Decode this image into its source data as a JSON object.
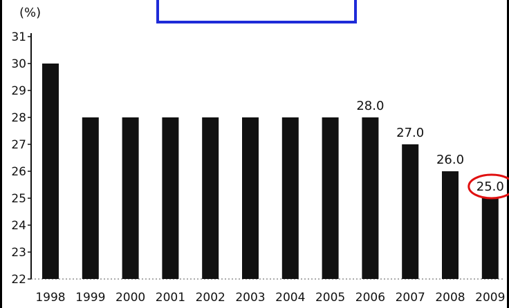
{
  "chart_data": {
    "type": "bar",
    "title": "",
    "ylabel": "(%)",
    "xlabel": "",
    "categories": [
      "1998",
      "1999",
      "2000",
      "2001",
      "2002",
      "2003",
      "2004",
      "2005",
      "2006",
      "2007",
      "2008",
      "2009"
    ],
    "values": [
      30.0,
      28.0,
      28.0,
      28.0,
      28.0,
      28.0,
      28.0,
      28.0,
      28.0,
      27.0,
      26.0,
      25.0
    ],
    "data_labels": [
      "",
      "",
      "",
      "",
      "",
      "",
      "",
      "",
      "28.0",
      "27.0",
      "26.0",
      "25.0"
    ],
    "highlighted_label": "25.0",
    "ylim": [
      22,
      31
    ],
    "yticks": [
      22,
      23,
      24,
      25,
      26,
      27,
      28,
      29,
      30,
      31
    ],
    "grid": false,
    "legend": "none",
    "colors": {
      "bar": "#111111",
      "title_border": "#1e2bd8",
      "highlight_circle": "#e01010"
    }
  }
}
